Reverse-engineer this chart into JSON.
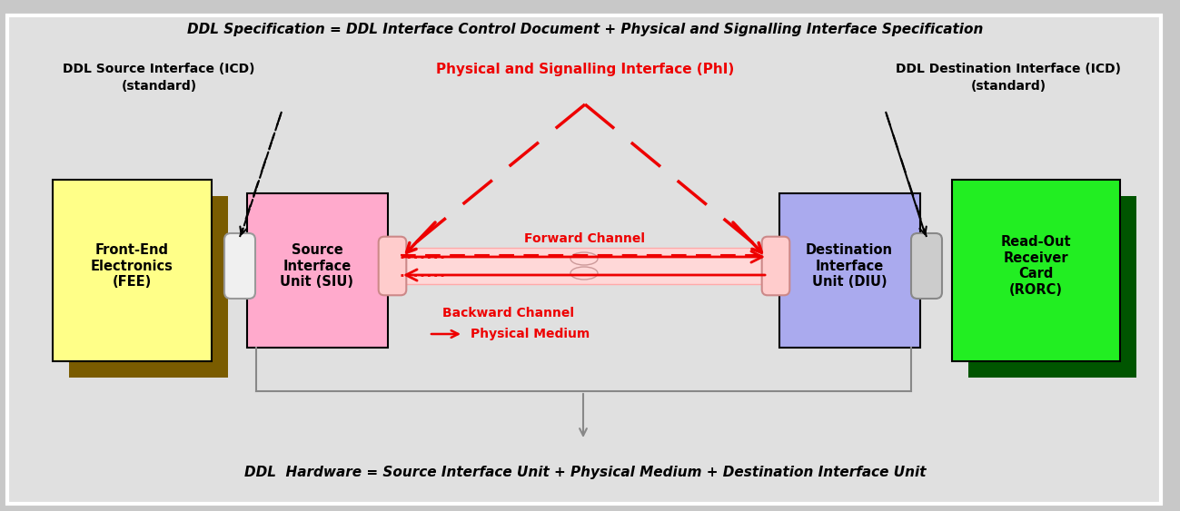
{
  "bg_color": "#c8c8c8",
  "main_bg": "#e0e0e0",
  "title_top": "DDL Specification = DDL Interface Control Document + Physical and Signalling Interface Specification",
  "title_bottom": "DDL  Hardware = Source Interface Unit + Physical Medium + Destination Interface Unit",
  "label_src_icd_1": "DDL Source Interface (ICD)",
  "label_src_icd_2": "(standard)",
  "label_dst_icd_1": "DDL Destination Interface (ICD)",
  "label_dst_icd_2": "(standard)",
  "label_phi": "Physical and Signalling Interface (PhI)",
  "label_fee": "Front-End\nElectronics\n(FEE)",
  "label_siu": "Source\nInterface\nUnit (SIU)",
  "label_diu": "Destination\nInterface\nUnit (DIU)",
  "label_rorc": "Read-Out\nReceiver\nCard\n(RORC)",
  "label_forward": "Forward Channel",
  "label_backward": "Backward Channel",
  "label_phymed": "Physical Medium",
  "fee_color": "#ffff88",
  "fee_shadow": "#7a5c00",
  "siu_color": "#ffaacc",
  "diu_color": "#aaaaee",
  "rorc_color": "#22ee22",
  "rorc_shadow": "#005500",
  "red": "#ee0000",
  "black": "#000000",
  "gray": "#888888",
  "tube_fill": "#ffd8d8",
  "tube_edge": "#ffaaaa",
  "conn_left_fill": "#f0f0f0",
  "conn_left_edge": "#999999",
  "conn_right_fill": "#ffcccc",
  "conn_right_edge": "#cc8888",
  "conn_gray_fill": "#cccccc",
  "conn_gray_edge": "#888888"
}
